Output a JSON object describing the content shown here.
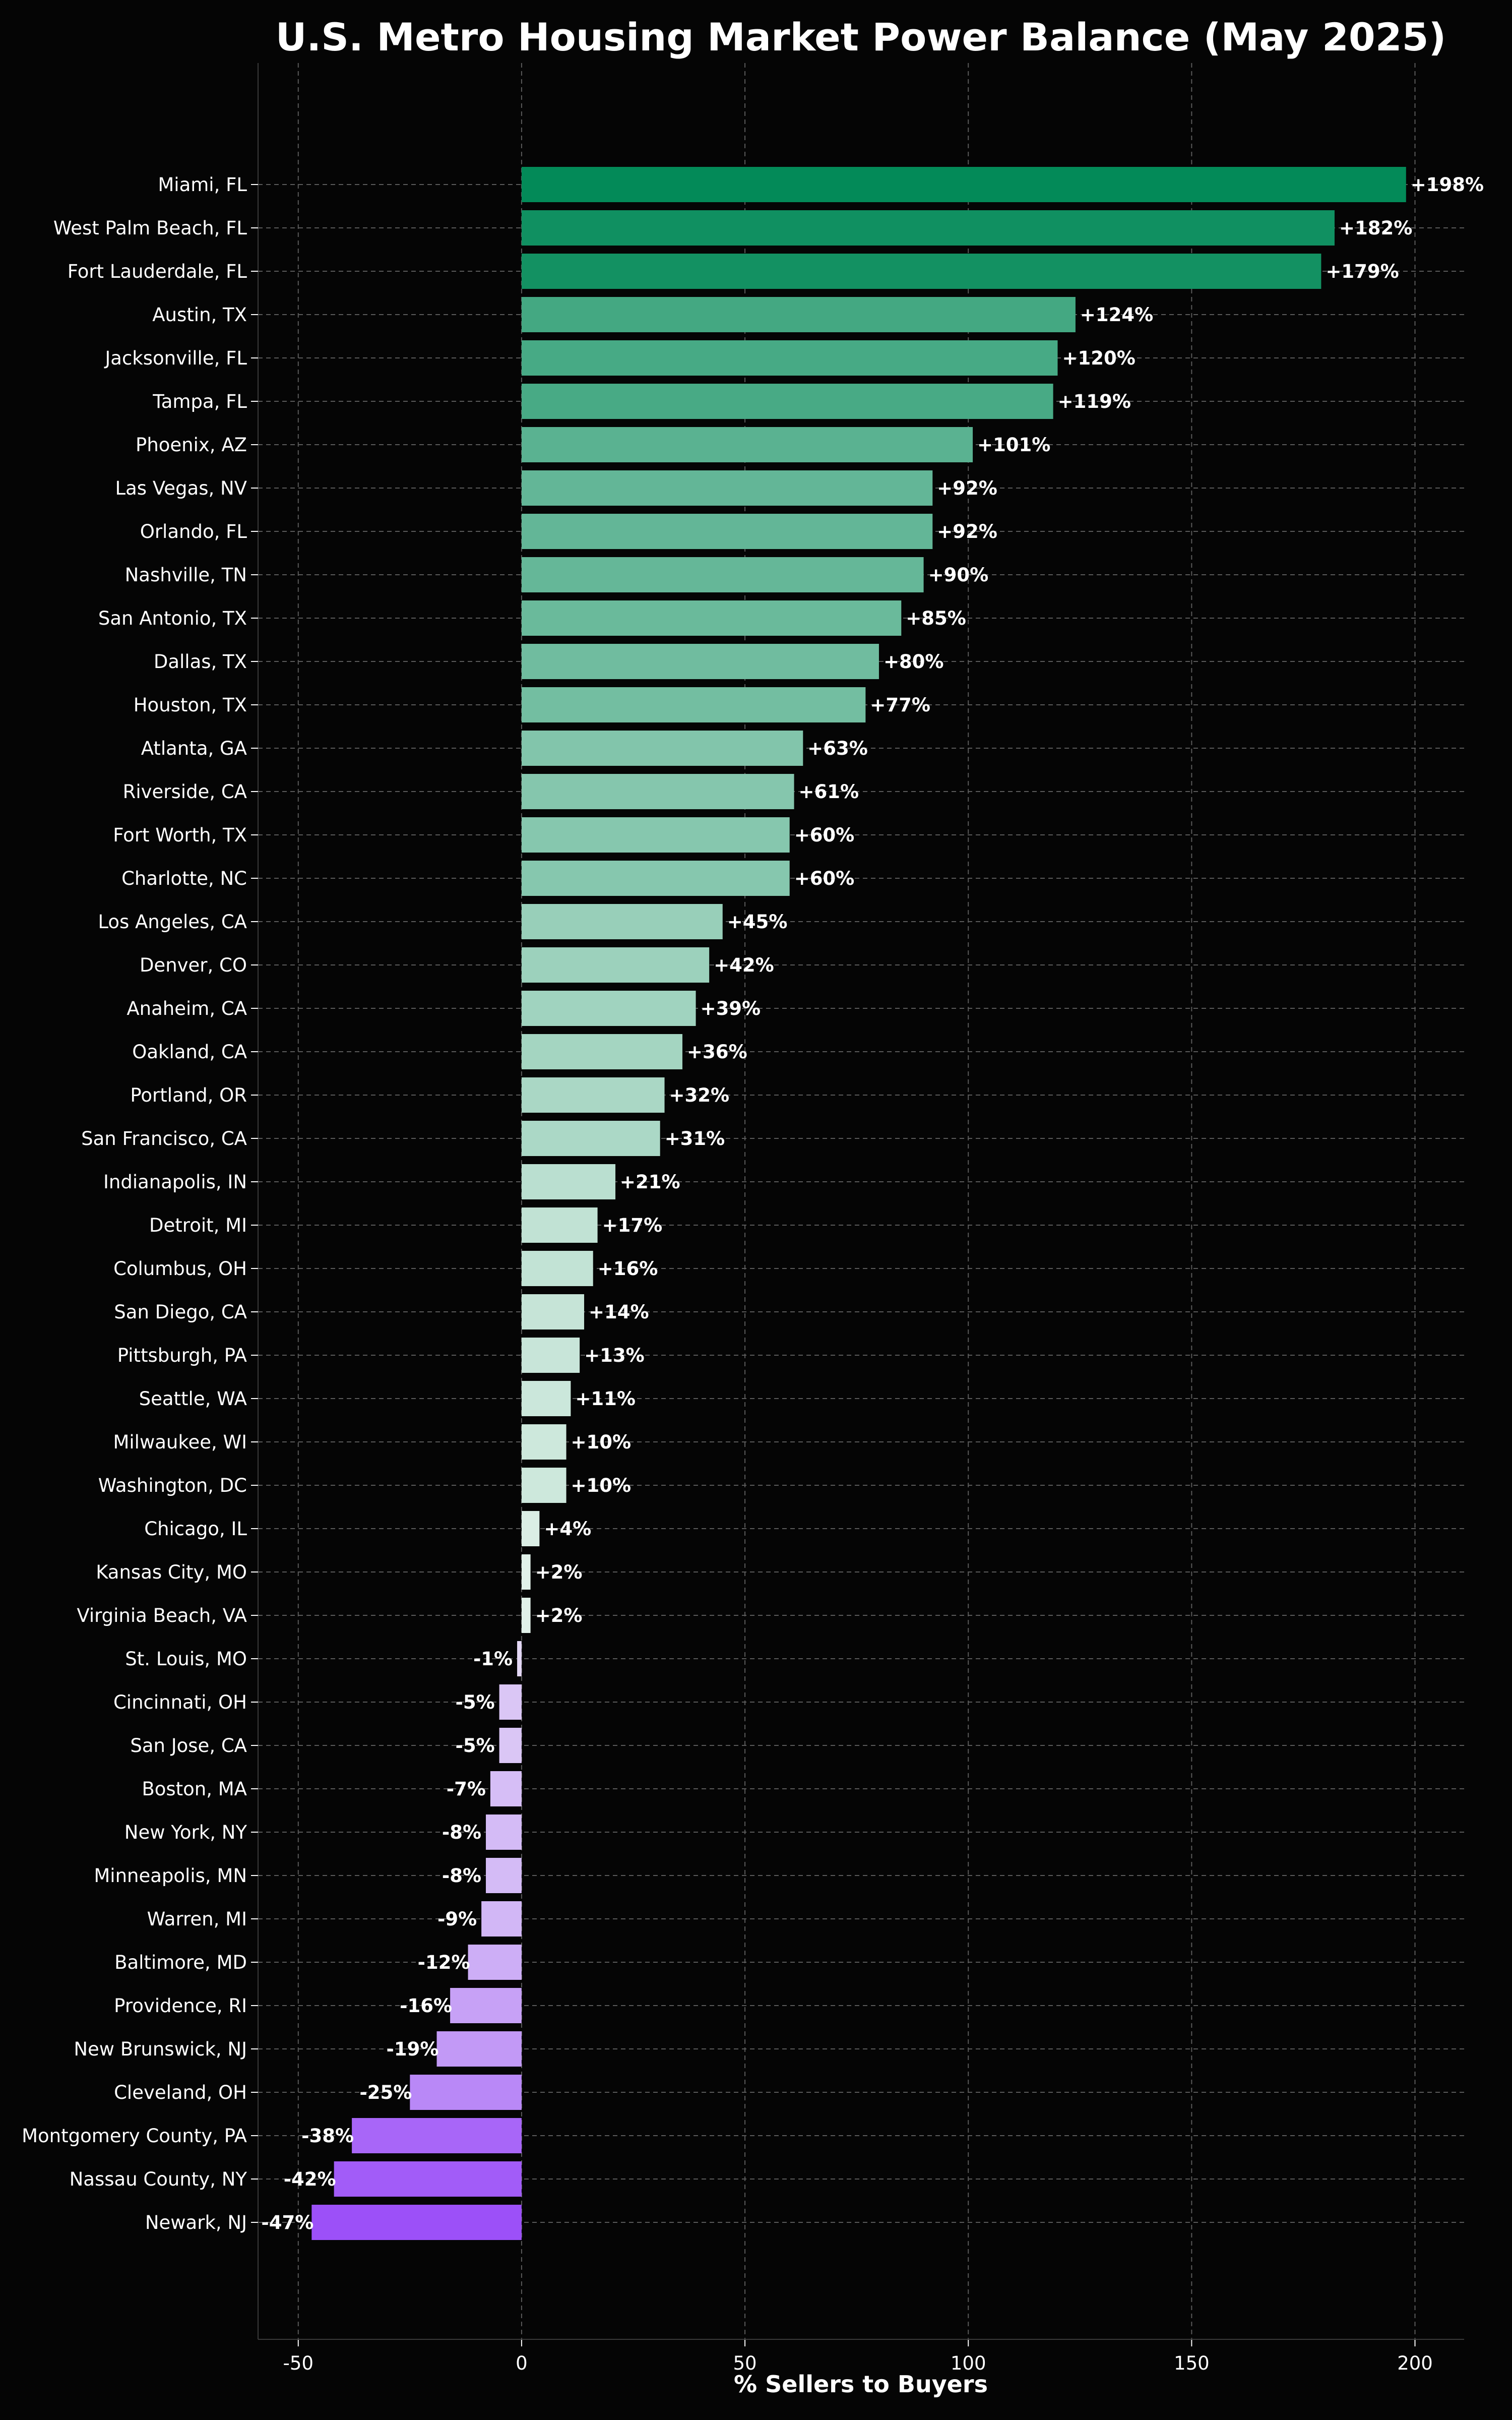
{
  "chart_data": {
    "type": "bar",
    "orientation": "horizontal",
    "title": "U.S. Metro Housing Market Power Balance (May 2025)",
    "xlabel": "% Sellers to Buyers",
    "ylabel": "",
    "xlim": [
      -59,
      211
    ],
    "xticks": [
      -50,
      0,
      50,
      100,
      150,
      200
    ],
    "grid": true,
    "colors": {
      "background": "#050505",
      "positive_strong": "#038a58",
      "positive_light": "#eaf5ef",
      "negative_light": "#e6ddf5",
      "negative_strong": "#9c50f8",
      "grid": "#5a5a5a",
      "text": "#ffffff"
    },
    "categories": [
      "Miami, FL",
      "West Palm Beach, FL",
      "Fort Lauderdale, FL",
      "Austin, TX",
      "Jacksonville, FL",
      "Tampa, FL",
      "Phoenix, AZ",
      "Las Vegas, NV",
      "Orlando, FL",
      "Nashville, TN",
      "San Antonio, TX",
      "Dallas, TX",
      "Houston, TX",
      "Atlanta, GA",
      "Riverside, CA",
      "Fort Worth, TX",
      "Charlotte, NC",
      "Los Angeles, CA",
      "Denver, CO",
      "Anaheim, CA",
      "Oakland, CA",
      "Portland, OR",
      "San Francisco, CA",
      "Indianapolis, IN",
      "Detroit, MI",
      "Columbus, OH",
      "San Diego, CA",
      "Pittsburgh, PA",
      "Seattle, WA",
      "Milwaukee, WI",
      "Washington, DC",
      "Chicago, IL",
      "Kansas City, MO",
      "Virginia Beach, VA",
      "St. Louis, MO",
      "Cincinnati, OH",
      "San Jose, CA",
      "Boston, MA",
      "New York, NY",
      "Minneapolis, MN",
      "Warren, MI",
      "Baltimore, MD",
      "Providence, RI",
      "New Brunswick, NJ",
      "Cleveland, OH",
      "Montgomery County, PA",
      "Nassau County, NY",
      "Newark, NJ"
    ],
    "values": [
      198,
      182,
      179,
      124,
      120,
      119,
      101,
      92,
      92,
      90,
      85,
      80,
      77,
      63,
      61,
      60,
      60,
      45,
      42,
      39,
      36,
      32,
      31,
      21,
      17,
      16,
      14,
      13,
      11,
      10,
      10,
      4,
      2,
      2,
      -1,
      -5,
      -5,
      -7,
      -8,
      -8,
      -9,
      -12,
      -16,
      -19,
      -25,
      -38,
      -42,
      -47
    ],
    "labels": [
      "+198%",
      "+182%",
      "+179%",
      "+124%",
      "+120%",
      "+119%",
      "+101%",
      "+92%",
      "+92%",
      "+90%",
      "+85%",
      "+80%",
      "+77%",
      "+63%",
      "+61%",
      "+60%",
      "+60%",
      "+45%",
      "+42%",
      "+39%",
      "+36%",
      "+32%",
      "+31%",
      "+21%",
      "+17%",
      "+16%",
      "+14%",
      "+13%",
      "+11%",
      "+10%",
      "+10%",
      "+4%",
      "+2%",
      "+2%",
      "-1%",
      "-5%",
      "-5%",
      "-7%",
      "-8%",
      "-8%",
      "-9%",
      "-12%",
      "-16%",
      "-19%",
      "-25%",
      "-38%",
      "-42%",
      "-47%"
    ]
  }
}
